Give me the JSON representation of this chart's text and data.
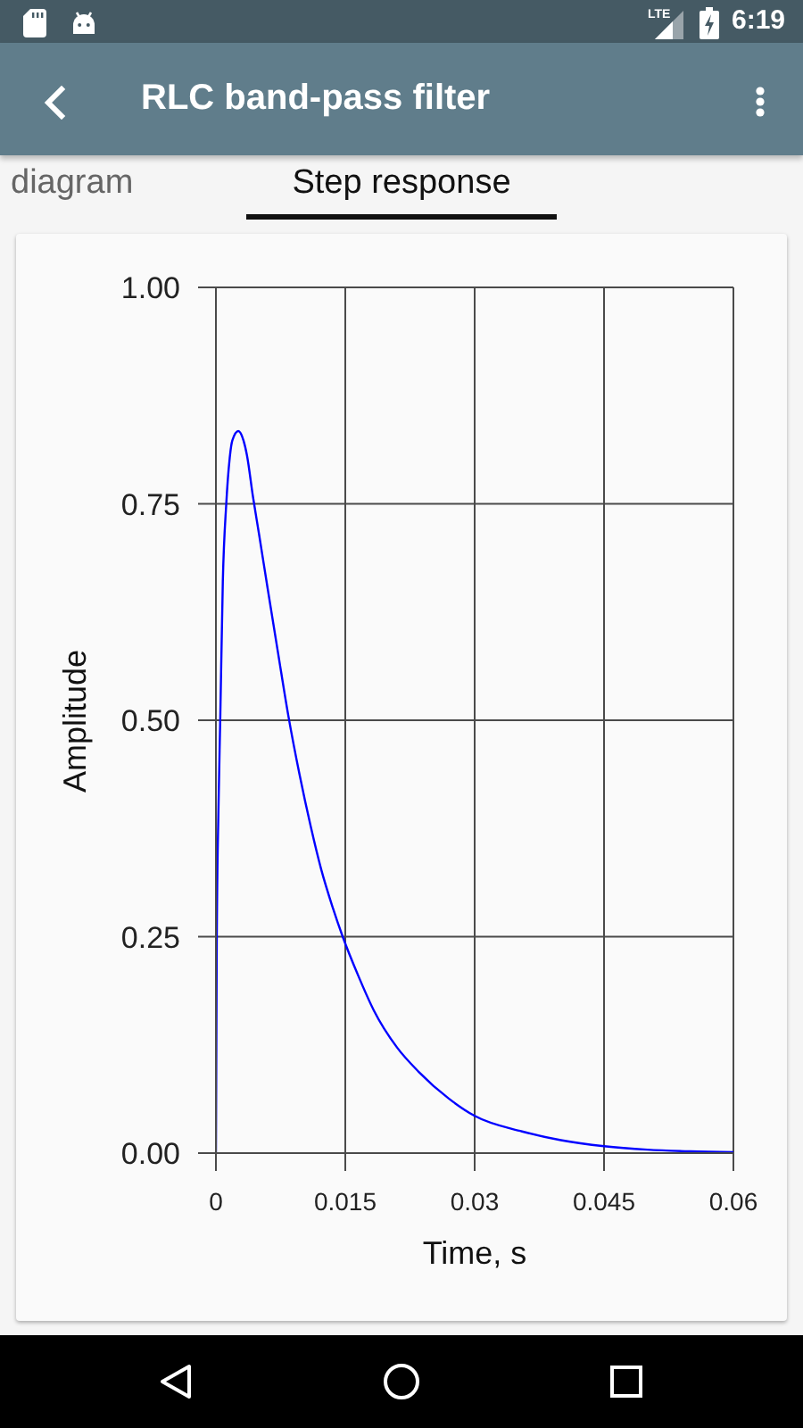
{
  "chart_data": {
    "type": "line",
    "title": "RLC band-pass filter",
    "subtitle": "Step response",
    "xlabel": "Time, s",
    "ylabel": "Amplitude",
    "annotations": [
      "LTE",
      "6:19",
      "diagram"
    ],
    "x": [
      0,
      0.0001,
      0.0003,
      0.0005,
      0.0008,
      0.0012,
      0.0016,
      0.0019,
      0.0026,
      0.0032,
      0.0036,
      0.0043,
      0.005,
      0.006,
      0.0072,
      0.0084,
      0.0097,
      0.011,
      0.0122,
      0.0135,
      0.0147,
      0.0165,
      0.0183,
      0.021,
      0.0235,
      0.027,
      0.03,
      0.0355,
      0.04,
      0.045,
      0.05,
      0.055,
      0.06
    ],
    "series": [
      {
        "color": "#0000ff",
        "values": [
          0,
          0.25,
          0.4,
          0.5,
          0.66,
          0.75,
          0.803,
          0.823,
          0.834,
          0.823,
          0.806,
          0.758,
          0.715,
          0.652,
          0.578,
          0.505,
          0.437,
          0.377,
          0.328,
          0.285,
          0.25,
          0.205,
          0.165,
          0.122,
          0.094,
          0.063,
          0.043,
          0.025,
          0.015,
          0.008,
          0.004,
          0.002,
          0.001
        ]
      }
    ],
    "xlim": [
      0,
      0.06
    ],
    "xticks": [
      0,
      0.015,
      0.03,
      0.045,
      0.06
    ],
    "ylim": [
      0,
      1
    ],
    "yticks": [
      {
        "value": 0,
        "label": "0.00"
      },
      {
        "value": 0.25,
        "label": "0.25"
      },
      {
        "value": 0.5,
        "label": "0.50"
      },
      {
        "value": 0.75,
        "label": "0.75"
      },
      {
        "value": 1,
        "label": "1.00"
      }
    ],
    "grid": true,
    "marker": "none",
    "line_style": "solid"
  }
}
